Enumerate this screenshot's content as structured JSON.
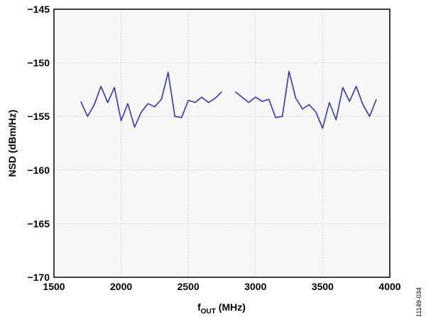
{
  "chart_data": {
    "type": "line",
    "title": "",
    "xlabel_main": "f",
    "xlabel_sub": "OUT",
    "xlabel_unit": " (MHz)",
    "ylabel": "NSD (dBm/Hz)",
    "xlim": [
      1500,
      4000
    ],
    "ylim": [
      -170,
      -145
    ],
    "x_ticks": [
      1500,
      2000,
      2500,
      3000,
      3500,
      4000
    ],
    "y_ticks": [
      -145,
      -150,
      -155,
      -160,
      -165,
      -170
    ],
    "x_tick_labels": [
      "1500",
      "2000",
      "2500",
      "3000",
      "3500",
      "4000"
    ],
    "y_tick_labels": [
      "−145",
      "−150",
      "−155",
      "−160",
      "−165",
      "−170"
    ],
    "grid": true,
    "line_color": "#3333bb",
    "series": [
      {
        "segments": [
          {
            "x": [
              1700,
              1750,
              1800,
              1850,
              1900,
              1950,
              2000,
              2050,
              2100,
              2150,
              2200,
              2250,
              2300,
              2350,
              2400,
              2450,
              2500,
              2550,
              2600,
              2650,
              2700,
              2750
            ],
            "y": [
              -153.6,
              -155.0,
              -153.9,
              -152.2,
              -153.7,
              -152.3,
              -155.4,
              -153.8,
              -156.0,
              -154.6,
              -153.8,
              -154.1,
              -153.4,
              -150.9,
              -155.0,
              -155.1,
              -153.5,
              -153.7,
              -153.2,
              -153.7,
              -153.3,
              -152.7
            ]
          },
          {
            "x": [
              2850,
              2900,
              2950,
              3000,
              3050,
              3100,
              3150,
              3200,
              3250,
              3300,
              3350,
              3400,
              3450,
              3500,
              3550,
              3600,
              3650,
              3700,
              3750,
              3800,
              3850,
              3900
            ],
            "y": [
              -152.7,
              -153.2,
              -153.7,
              -153.2,
              -153.6,
              -153.4,
              -155.1,
              -155.0,
              -150.8,
              -153.3,
              -154.3,
              -153.9,
              -154.6,
              -156.1,
              -153.7,
              -155.3,
              -152.3,
              -153.6,
              -152.2,
              -153.9,
              -155.0,
              -153.4
            ]
          }
        ]
      }
    ]
  },
  "figure_id": "11149-034"
}
